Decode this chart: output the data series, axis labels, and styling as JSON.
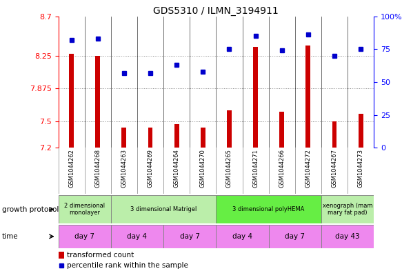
{
  "title": "GDS5310 / ILMN_3194911",
  "samples": [
    "GSM1044262",
    "GSM1044268",
    "GSM1044263",
    "GSM1044269",
    "GSM1044264",
    "GSM1044270",
    "GSM1044265",
    "GSM1044271",
    "GSM1044266",
    "GSM1044272",
    "GSM1044267",
    "GSM1044273"
  ],
  "transformed_counts": [
    8.27,
    8.25,
    7.43,
    7.43,
    7.47,
    7.43,
    7.63,
    8.35,
    7.61,
    8.37,
    7.5,
    7.59
  ],
  "percentile_ranks": [
    82,
    83,
    57,
    57,
    63,
    58,
    75,
    85,
    74,
    86,
    70,
    75
  ],
  "ylim_left": [
    7.2,
    8.7
  ],
  "ylim_right": [
    0,
    100
  ],
  "yticks_left": [
    7.2,
    7.5,
    7.875,
    8.25,
    8.7
  ],
  "ytick_labels_left": [
    "7.2",
    "7.5",
    "7.875",
    "8.25",
    "8.7"
  ],
  "yticks_right": [
    0,
    25,
    50,
    75,
    100
  ],
  "ytick_labels_right": [
    "0",
    "25",
    "50",
    "75",
    "100%"
  ],
  "bar_color": "#cc0000",
  "dot_color": "#0000cc",
  "bar_baseline": 7.2,
  "growth_protocol_groups": [
    {
      "label": "2 dimensional\nmonolayer",
      "start": 0,
      "end": 2,
      "color": "#bbeeaa"
    },
    {
      "label": "3 dimensional Matrigel",
      "start": 2,
      "end": 6,
      "color": "#bbeeaa"
    },
    {
      "label": "3 dimensional polyHEMA",
      "start": 6,
      "end": 10,
      "color": "#66ee44"
    },
    {
      "label": "xenograph (mam\nmary fat pad)",
      "start": 10,
      "end": 12,
      "color": "#bbeeaa"
    }
  ],
  "time_groups": [
    {
      "label": "day 7",
      "start": 0,
      "end": 2
    },
    {
      "label": "day 4",
      "start": 2,
      "end": 4
    },
    {
      "label": "day 7",
      "start": 4,
      "end": 6
    },
    {
      "label": "day 4",
      "start": 6,
      "end": 8
    },
    {
      "label": "day 7",
      "start": 8,
      "end": 10
    },
    {
      "label": "day 43",
      "start": 10,
      "end": 12
    }
  ],
  "time_color": "#ee88ee",
  "legend_bar_label": "transformed count",
  "legend_dot_label": "percentile rank within the sample",
  "growth_protocol_label": "growth protocol",
  "time_label": "time",
  "bg_color": "#ffffff",
  "grid_color": "#888888",
  "sample_bg_color": "#cccccc",
  "bar_width": 0.18
}
